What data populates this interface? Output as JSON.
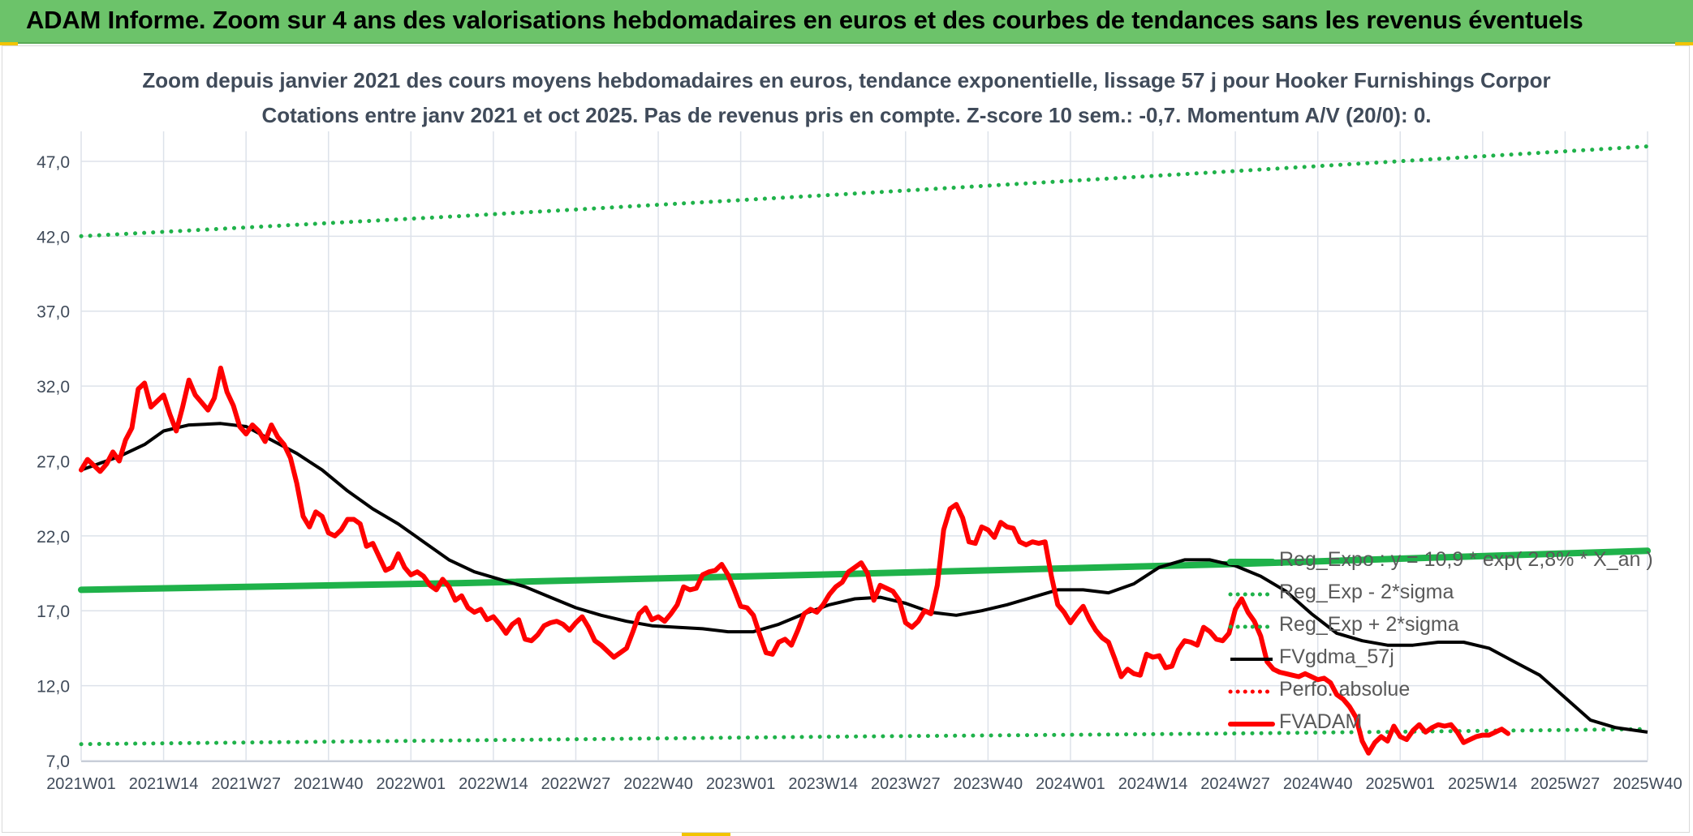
{
  "banner": {
    "title": "ADAM Informe. Zoom sur 4 ans des valorisations hebdomadaires en euros et des courbes de tendances sans les revenus éventuels"
  },
  "colors": {
    "banner_bg": "#6cc36a",
    "green": "#1fb24a",
    "red": "#ff0000",
    "black": "#000000",
    "grid": "#dde2ea",
    "axis_text": "#404b5a"
  },
  "chart_data": {
    "type": "line",
    "title_line1": "Zoom depuis janvier 2021 des cours moyens hebdomadaires en euros, tendance exponentielle, lissage 57 j pour Hooker Furnishings Corpor",
    "title_line2": "Cotations entre janv 2021 et oct 2025. Pas de revenus pris en compte. Z-score 10 sem.: -0,7. Momentum A/V (20/0): 0.",
    "ylim": [
      7.0,
      49.0
    ],
    "y_ticks": [
      "7,0",
      "12,0",
      "17,0",
      "22,0",
      "27,0",
      "32,0",
      "37,0",
      "42,0",
      "47,0"
    ],
    "y_tick_values": [
      7,
      12,
      17,
      22,
      27,
      32,
      37,
      42,
      47
    ],
    "x_ticks": [
      "2021W01",
      "2021W14",
      "2021W27",
      "2021W40",
      "2022W01",
      "2022W14",
      "2022W27",
      "2022W40",
      "2023W01",
      "2023W14",
      "2023W27",
      "2023W40",
      "2024W01",
      "2024W14",
      "2024W27",
      "2024W40",
      "2025W01",
      "2025W14",
      "2025W27",
      "2025W40"
    ],
    "x_range_weeks": [
      0,
      247
    ],
    "legend_position": "bottom-right",
    "series": [
      {
        "name": "Reg_Expo : y = 10,9 * exp( 2,8% *  X_an )",
        "style": "thick-solid",
        "color": "#1fb24a",
        "points": [
          [
            0,
            18.4
          ],
          [
            60,
            18.85
          ],
          [
            120,
            19.45
          ],
          [
            180,
            20.1
          ],
          [
            247,
            21.0
          ]
        ]
      },
      {
        "name": "Reg_Exp - 2*sigma",
        "style": "dotted",
        "color": "#1fb24a",
        "points": [
          [
            0,
            8.1
          ],
          [
            60,
            8.35
          ],
          [
            120,
            8.6
          ],
          [
            180,
            8.8
          ],
          [
            247,
            9.1
          ]
        ]
      },
      {
        "name": "Reg_Exp + 2*sigma",
        "style": "dotted",
        "color": "#1fb24a",
        "points": [
          [
            0,
            42.0
          ],
          [
            60,
            43.35
          ],
          [
            120,
            44.8
          ],
          [
            180,
            46.3
          ],
          [
            247,
            48.0
          ]
        ]
      },
      {
        "name": "FVgdma_57j",
        "style": "solid",
        "color": "#000000",
        "points": [
          [
            0,
            26.4
          ],
          [
            6,
            27.3
          ],
          [
            10,
            28.1
          ],
          [
            13,
            29.0
          ],
          [
            17,
            29.4
          ],
          [
            22,
            29.5
          ],
          [
            26,
            29.3
          ],
          [
            30,
            28.4
          ],
          [
            34,
            27.5
          ],
          [
            38,
            26.4
          ],
          [
            42,
            25.0
          ],
          [
            46,
            23.8
          ],
          [
            50,
            22.8
          ],
          [
            54,
            21.6
          ],
          [
            58,
            20.4
          ],
          [
            62,
            19.6
          ],
          [
            66,
            19.1
          ],
          [
            70,
            18.6
          ],
          [
            74,
            17.9
          ],
          [
            78,
            17.2
          ],
          [
            82,
            16.7
          ],
          [
            86,
            16.3
          ],
          [
            90,
            16.0
          ],
          [
            94,
            15.9
          ],
          [
            98,
            15.8
          ],
          [
            102,
            15.6
          ],
          [
            106,
            15.6
          ],
          [
            110,
            16.1
          ],
          [
            114,
            16.8
          ],
          [
            118,
            17.4
          ],
          [
            122,
            17.8
          ],
          [
            126,
            17.9
          ],
          [
            130,
            17.5
          ],
          [
            134,
            16.9
          ],
          [
            138,
            16.7
          ],
          [
            142,
            17.0
          ],
          [
            146,
            17.4
          ],
          [
            150,
            17.9
          ],
          [
            154,
            18.4
          ],
          [
            158,
            18.4
          ],
          [
            162,
            18.2
          ],
          [
            166,
            18.8
          ],
          [
            170,
            19.9
          ],
          [
            174,
            20.4
          ],
          [
            178,
            20.4
          ],
          [
            182,
            20.0
          ],
          [
            186,
            19.3
          ],
          [
            190,
            18.3
          ],
          [
            194,
            16.8
          ],
          [
            198,
            15.5
          ],
          [
            202,
            15.0
          ],
          [
            206,
            14.7
          ],
          [
            210,
            14.7
          ],
          [
            214,
            14.9
          ],
          [
            218,
            14.9
          ],
          [
            222,
            14.5
          ],
          [
            226,
            13.6
          ],
          [
            230,
            12.7
          ],
          [
            234,
            11.2
          ],
          [
            238,
            9.7
          ],
          [
            242,
            9.2
          ],
          [
            247,
            8.9
          ]
        ]
      },
      {
        "name": "Perfo. absolue",
        "style": "dotted",
        "color": "#ff0000",
        "points": []
      },
      {
        "name": "FVADAM",
        "style": "thick-solid",
        "color": "#ff0000",
        "points": [
          [
            0,
            26.4
          ],
          [
            1,
            27.1
          ],
          [
            2,
            26.7
          ],
          [
            3,
            26.3
          ],
          [
            4,
            26.8
          ],
          [
            5,
            27.6
          ],
          [
            6,
            27.0
          ],
          [
            7,
            28.4
          ],
          [
            8,
            29.2
          ],
          [
            9,
            31.8
          ],
          [
            10,
            32.2
          ],
          [
            11,
            30.6
          ],
          [
            12,
            31.0
          ],
          [
            13,
            31.4
          ],
          [
            14,
            30.1
          ],
          [
            15,
            29.0
          ],
          [
            16,
            30.6
          ],
          [
            17,
            32.4
          ],
          [
            18,
            31.4
          ],
          [
            19,
            30.9
          ],
          [
            20,
            30.4
          ],
          [
            21,
            31.2
          ],
          [
            22,
            33.2
          ],
          [
            23,
            31.6
          ],
          [
            24,
            30.7
          ],
          [
            25,
            29.3
          ],
          [
            26,
            28.8
          ],
          [
            27,
            29.4
          ],
          [
            28,
            29.0
          ],
          [
            29,
            28.3
          ],
          [
            30,
            29.4
          ],
          [
            31,
            28.6
          ],
          [
            32,
            28.1
          ],
          [
            33,
            27.2
          ],
          [
            34,
            25.5
          ],
          [
            35,
            23.3
          ],
          [
            36,
            22.6
          ],
          [
            37,
            23.6
          ],
          [
            38,
            23.3
          ],
          [
            39,
            22.2
          ],
          [
            40,
            22.0
          ],
          [
            41,
            22.4
          ],
          [
            42,
            23.1
          ],
          [
            43,
            23.1
          ],
          [
            44,
            22.8
          ],
          [
            45,
            21.3
          ],
          [
            46,
            21.5
          ],
          [
            47,
            20.6
          ],
          [
            48,
            19.7
          ],
          [
            49,
            19.9
          ],
          [
            50,
            20.8
          ],
          [
            51,
            19.9
          ],
          [
            52,
            19.4
          ],
          [
            53,
            19.6
          ],
          [
            54,
            19.3
          ],
          [
            55,
            18.7
          ],
          [
            56,
            18.4
          ],
          [
            57,
            19.1
          ],
          [
            58,
            18.6
          ],
          [
            59,
            17.7
          ],
          [
            60,
            18.0
          ],
          [
            61,
            17.2
          ],
          [
            62,
            16.9
          ],
          [
            63,
            17.1
          ],
          [
            64,
            16.4
          ],
          [
            65,
            16.6
          ],
          [
            66,
            16.1
          ],
          [
            67,
            15.5
          ],
          [
            68,
            16.1
          ],
          [
            69,
            16.4
          ],
          [
            70,
            15.1
          ],
          [
            71,
            15.0
          ],
          [
            72,
            15.4
          ],
          [
            73,
            16.0
          ],
          [
            74,
            16.2
          ],
          [
            75,
            16.3
          ],
          [
            76,
            16.1
          ],
          [
            77,
            15.7
          ],
          [
            78,
            16.2
          ],
          [
            79,
            16.6
          ],
          [
            80,
            15.9
          ],
          [
            81,
            15.0
          ],
          [
            82,
            14.7
          ],
          [
            83,
            14.3
          ],
          [
            84,
            13.9
          ],
          [
            85,
            14.2
          ],
          [
            86,
            14.5
          ],
          [
            87,
            15.6
          ],
          [
            88,
            16.8
          ],
          [
            89,
            17.2
          ],
          [
            90,
            16.4
          ],
          [
            91,
            16.6
          ],
          [
            92,
            16.3
          ],
          [
            93,
            16.8
          ],
          [
            94,
            17.4
          ],
          [
            95,
            18.6
          ],
          [
            96,
            18.4
          ],
          [
            97,
            18.5
          ],
          [
            98,
            19.4
          ],
          [
            99,
            19.6
          ],
          [
            100,
            19.7
          ],
          [
            101,
            20.1
          ],
          [
            102,
            19.4
          ],
          [
            103,
            18.4
          ],
          [
            104,
            17.3
          ],
          [
            105,
            17.2
          ],
          [
            106,
            16.7
          ],
          [
            107,
            15.4
          ],
          [
            108,
            14.2
          ],
          [
            109,
            14.1
          ],
          [
            110,
            14.9
          ],
          [
            111,
            15.1
          ],
          [
            112,
            14.7
          ],
          [
            113,
            15.7
          ],
          [
            114,
            16.8
          ],
          [
            115,
            17.1
          ],
          [
            116,
            16.9
          ],
          [
            117,
            17.4
          ],
          [
            118,
            18.1
          ],
          [
            119,
            18.6
          ],
          [
            120,
            18.9
          ],
          [
            121,
            19.6
          ],
          [
            122,
            19.9
          ],
          [
            123,
            20.2
          ],
          [
            124,
            19.5
          ],
          [
            125,
            17.7
          ],
          [
            126,
            18.7
          ],
          [
            127,
            18.5
          ],
          [
            128,
            18.3
          ],
          [
            129,
            17.7
          ],
          [
            130,
            16.2
          ],
          [
            131,
            15.9
          ],
          [
            132,
            16.3
          ],
          [
            133,
            17.0
          ],
          [
            134,
            16.8
          ],
          [
            135,
            18.7
          ],
          [
            136,
            22.4
          ],
          [
            137,
            23.8
          ],
          [
            138,
            24.1
          ],
          [
            139,
            23.2
          ],
          [
            140,
            21.6
          ],
          [
            141,
            21.5
          ],
          [
            142,
            22.6
          ],
          [
            143,
            22.4
          ],
          [
            144,
            21.9
          ],
          [
            145,
            22.9
          ],
          [
            146,
            22.6
          ],
          [
            147,
            22.5
          ],
          [
            148,
            21.6
          ],
          [
            149,
            21.4
          ],
          [
            150,
            21.6
          ],
          [
            151,
            21.5
          ],
          [
            152,
            21.6
          ],
          [
            153,
            19.3
          ],
          [
            154,
            17.4
          ],
          [
            155,
            16.9
          ],
          [
            156,
            16.2
          ],
          [
            157,
            16.8
          ],
          [
            158,
            17.3
          ],
          [
            159,
            16.4
          ],
          [
            160,
            15.7
          ],
          [
            161,
            15.2
          ],
          [
            162,
            14.9
          ],
          [
            163,
            13.8
          ],
          [
            164,
            12.6
          ],
          [
            165,
            13.1
          ],
          [
            166,
            12.8
          ],
          [
            167,
            12.7
          ],
          [
            168,
            14.1
          ],
          [
            169,
            13.9
          ],
          [
            170,
            14.0
          ],
          [
            171,
            13.2
          ],
          [
            172,
            13.3
          ],
          [
            173,
            14.4
          ],
          [
            174,
            15.0
          ],
          [
            175,
            14.9
          ],
          [
            176,
            14.7
          ],
          [
            177,
            15.9
          ],
          [
            178,
            15.6
          ],
          [
            179,
            15.1
          ],
          [
            180,
            15.0
          ],
          [
            181,
            15.5
          ],
          [
            182,
            17.1
          ],
          [
            183,
            17.8
          ],
          [
            184,
            16.9
          ],
          [
            185,
            16.3
          ],
          [
            186,
            15.3
          ],
          [
            187,
            13.6
          ],
          [
            188,
            13.1
          ],
          [
            189,
            12.9
          ],
          [
            190,
            12.8
          ],
          [
            191,
            12.7
          ],
          [
            192,
            12.6
          ],
          [
            193,
            12.8
          ],
          [
            194,
            12.6
          ],
          [
            195,
            12.4
          ],
          [
            196,
            12.5
          ],
          [
            197,
            12.2
          ],
          [
            198,
            11.4
          ],
          [
            199,
            11.1
          ],
          [
            200,
            10.6
          ],
          [
            201,
            9.9
          ],
          [
            202,
            8.3
          ],
          [
            203,
            7.5
          ],
          [
            204,
            8.2
          ],
          [
            205,
            8.6
          ],
          [
            206,
            8.3
          ],
          [
            207,
            9.3
          ],
          [
            208,
            8.6
          ],
          [
            209,
            8.4
          ],
          [
            210,
            9.0
          ],
          [
            211,
            9.4
          ],
          [
            212,
            8.9
          ],
          [
            213,
            9.2
          ],
          [
            214,
            9.4
          ],
          [
            215,
            9.3
          ],
          [
            216,
            9.4
          ],
          [
            217,
            8.9
          ],
          [
            218,
            8.2
          ],
          [
            219,
            8.4
          ],
          [
            220,
            8.6
          ],
          [
            221,
            8.7
          ],
          [
            222,
            8.7
          ],
          [
            223,
            8.9
          ],
          [
            224,
            9.1
          ],
          [
            225,
            8.8
          ]
        ]
      }
    ]
  }
}
